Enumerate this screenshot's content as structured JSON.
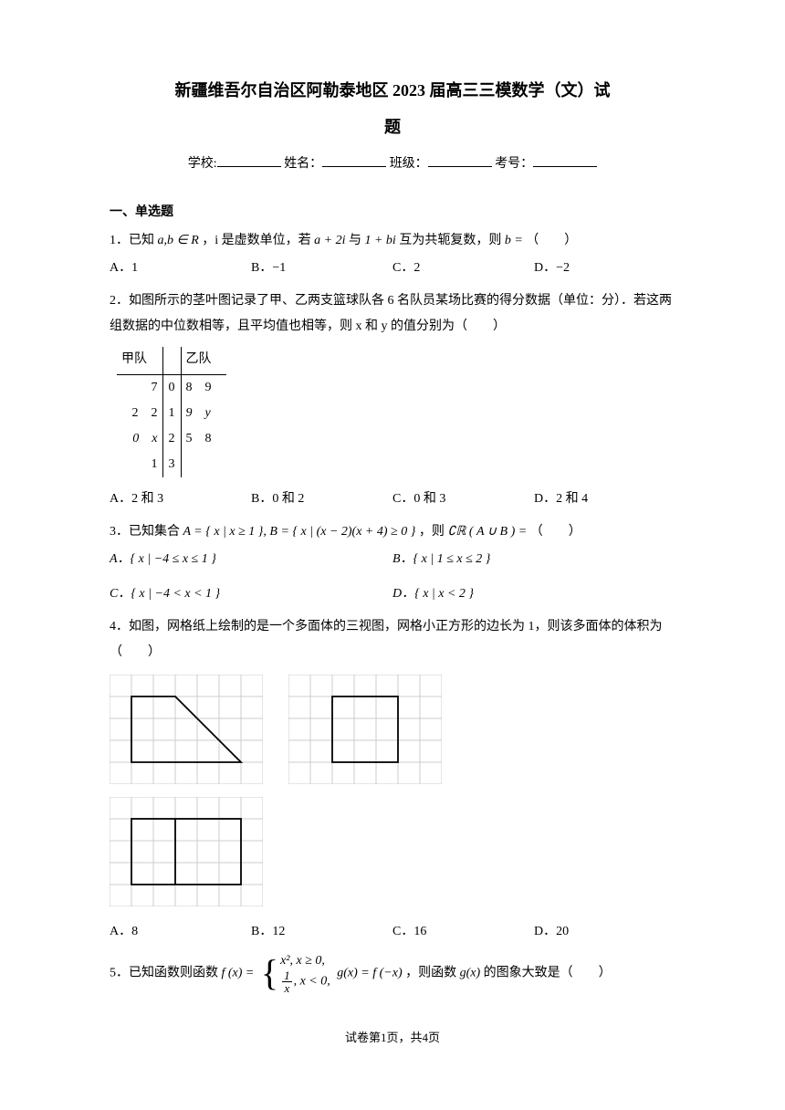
{
  "title_line1": "新疆维吾尔自治区阿勒泰地区 2023 届高三三模数学（文）试",
  "title_line2": "题",
  "info": {
    "school_label": "学校:",
    "name_label": "姓名：",
    "class_label": "班级：",
    "exam_no_label": "考号："
  },
  "section_header": "一、单选题",
  "q1": {
    "text_a": "1．已知",
    "math_a": "a,b ∈ R",
    "text_b": "，i 是虚数单位，若",
    "math_b": "a + 2i",
    "text_c": "与",
    "math_c": "1 + bi",
    "text_d": "互为共轭复数，则",
    "math_d": "b =",
    "text_e": "（　　）",
    "optA": "A．1",
    "optB": "B．−1",
    "optC": "C．2",
    "optD": "D．−2"
  },
  "q2": {
    "text_a": "2．如图所示的茎叶图记录了甲、乙两支篮球队各 6 名队员某场比赛的得分数据（单位：分）．若这两组数据的中位数相等，且平均值也相等，则 x 和 y 的值分别为（　　）",
    "header_left": "甲队",
    "header_right": "乙队",
    "rows": [
      {
        "left": "7",
        "stem": "0",
        "right": "8　9"
      },
      {
        "left": "2　2",
        "stem": "1",
        "right": "9　y"
      },
      {
        "left": "0　x",
        "stem": "2",
        "right": "5　8"
      },
      {
        "left": "1",
        "stem": "3",
        "right": ""
      }
    ],
    "optA": "A．2 和 3",
    "optB": "B．0 和 2",
    "optC": "C．0 和 3",
    "optD": "D．2 和 4"
  },
  "q3": {
    "text_a": "3．已知集合",
    "math_a": "A = { x | x ≥ 1 }, B = { x | (x − 2)(x + 4) ≥ 0 }",
    "text_b": "，则",
    "math_b": "∁ℝ ( A ∪ B ) =",
    "text_c": "（　　）",
    "optA": "A．{ x | −4 ≤ x ≤ 1 }",
    "optB": "B．{ x | 1 ≤ x ≤ 2 }",
    "optC": "C．{ x | −4 < x < 1 }",
    "optD": "D．{ x | x < 2 }"
  },
  "q4": {
    "text": "4．如图，网格纸上绘制的是一个多面体的三视图，网格小正方形的边长为 1，则该多面体的体积为（　　）",
    "optA": "A．8",
    "optB": "B．12",
    "optC": "C．16",
    "optD": "D．20",
    "grid": {
      "cell": 24,
      "cols": 7,
      "rows": 5,
      "stroke": "#cccccc",
      "shape_stroke": "#000000",
      "shape_stroke_width": 1.8
    }
  },
  "q5": {
    "text_a": "5．已知函数则函数",
    "math_a": "f (x) =",
    "piece1": "x², x ≥ 0,",
    "piece2_num": "1",
    "piece2_den": "x",
    "piece2_tail": ", x < 0,",
    "math_b": "g(x) = f (−x)",
    "text_b": "，则函数",
    "math_c": "g(x)",
    "text_c": "的图象大致是（　　）"
  },
  "footer": "试卷第1页，共4页"
}
